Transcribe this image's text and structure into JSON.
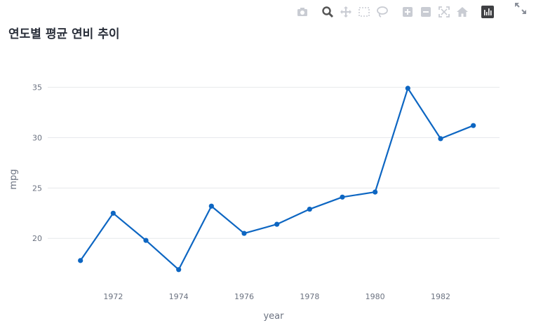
{
  "title": "연도별 평균 연비 추이",
  "toolbar": {
    "icons": [
      "camera-icon",
      "zoom-icon",
      "pan-icon",
      "box-select-icon",
      "lasso-icon",
      "zoom-in-icon",
      "zoom-out-icon",
      "autoscale-icon",
      "home-icon",
      "chart-logo-icon"
    ]
  },
  "chart_data": {
    "type": "line",
    "x": [
      1971,
      1972,
      1973,
      1974,
      1975,
      1976,
      1977,
      1978,
      1979,
      1980,
      1981,
      1982,
      1983
    ],
    "series": [
      {
        "values": [
          17.8,
          22.5,
          19.8,
          16.9,
          23.2,
          20.5,
          21.4,
          22.9,
          24.1,
          24.6,
          34.9,
          29.9,
          31.2
        ]
      }
    ],
    "xlabel": "year",
    "ylabel": "mpg",
    "xlim": [
      1970.0,
      1983.8
    ],
    "ylim": [
      14.8,
      38.1
    ],
    "xticks": [
      1972,
      1974,
      1976,
      1978,
      1980,
      1982
    ],
    "yticks": [
      20,
      25,
      30,
      35
    ],
    "line_color": "#0d66c2",
    "grid": true
  }
}
